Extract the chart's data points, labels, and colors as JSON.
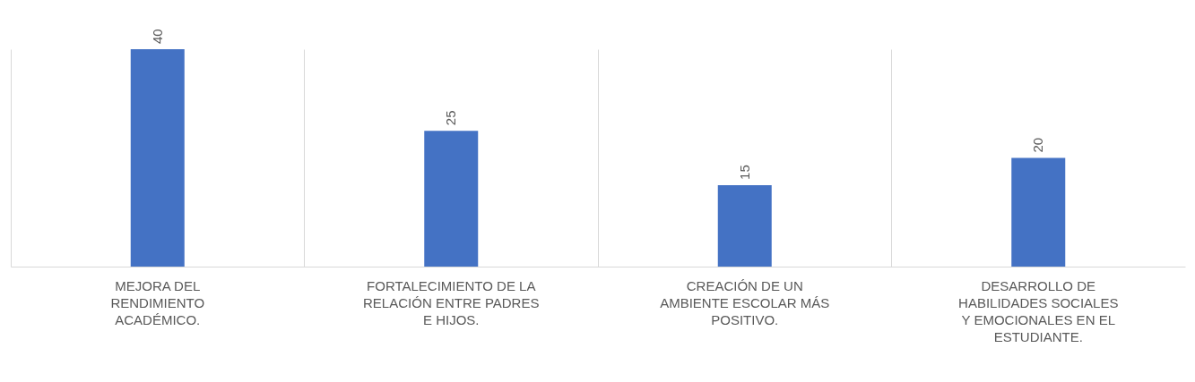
{
  "chart_data": {
    "type": "bar",
    "categories": [
      "MEJORA DEL RENDIMIENTO ACADÉMICO.",
      "FORTALECIMIENTO DE LA RELACIÓN ENTRE PADRES E HIJOS.",
      "CREACIÓN DE UN AMBIENTE ESCOLAR MÁS POSITIVO.",
      "DESARROLLO DE HABILIDADES SOCIALES Y EMOCIONALES EN EL ESTUDIANTE."
    ],
    "values": [
      40,
      25,
      15,
      20
    ],
    "color": "#4472c4",
    "data_labels": true,
    "grid": "x"
  }
}
